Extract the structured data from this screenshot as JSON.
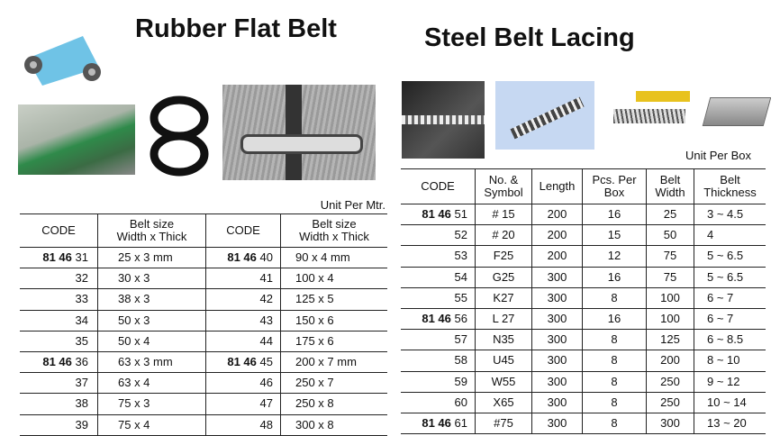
{
  "left": {
    "title": "Rubber Flat Belt",
    "unit": "Unit Per Mtr.",
    "headers": [
      "CODE",
      "Belt size",
      "Width x Thick",
      "CODE",
      "Belt size",
      "Width x Thick"
    ],
    "groups": [
      {
        "prefix_a": "81 46",
        "prefix_b": "81 46",
        "rows": [
          [
            "31",
            "25 x 3 mm",
            "40",
            "90 x 4 mm"
          ],
          [
            "32",
            "30 x 3",
            "41",
            "100 x 4"
          ],
          [
            "33",
            "38 x 3",
            "42",
            "125 x 5"
          ],
          [
            "34",
            "50 x 3",
            "43",
            "150 x 6"
          ],
          [
            "35",
            "50 x 4",
            "44",
            "175 x 6"
          ]
        ]
      },
      {
        "prefix_a": "81 46",
        "prefix_b": "81 46",
        "rows": [
          [
            "36",
            "63 x 3 mm",
            "45",
            "200 x 7 mm"
          ],
          [
            "37",
            "63 x 4",
            "46",
            "250 x 7"
          ],
          [
            "38",
            "75 x 3",
            "47",
            "250 x 8"
          ],
          [
            "39",
            "75 x 4",
            "48",
            "300 x 8"
          ]
        ]
      }
    ]
  },
  "right": {
    "title": "Steel Belt Lacing",
    "unit": "Unit Per Box",
    "headers": [
      "CODE",
      "No. &",
      "Symbol",
      "Length",
      "Pcs. Per",
      "Box",
      "Belt",
      "Width",
      "Belt",
      "Thickness"
    ],
    "groups": [
      {
        "prefix": "81 46",
        "rows": [
          [
            "51",
            "# 15",
            "200",
            "16",
            "25",
            "3 ~ 4.5"
          ],
          [
            "52",
            "# 20",
            "200",
            "15",
            "50",
            "4"
          ],
          [
            "53",
            "F25",
            "200",
            "12",
            "75",
            "5 ~ 6.5"
          ],
          [
            "54",
            "G25",
            "300",
            "16",
            "75",
            "5 ~ 6.5"
          ],
          [
            "55",
            "K27",
            "300",
            "8",
            "100",
            "6 ~ 7"
          ]
        ]
      },
      {
        "prefix": "81 46",
        "rows": [
          [
            "56",
            "L 27",
            "300",
            "16",
            "100",
            "6 ~ 7"
          ],
          [
            "57",
            "N35",
            "300",
            "8",
            "125",
            "6 ~ 8.5"
          ],
          [
            "58",
            "U45",
            "300",
            "8",
            "200",
            "8 ~ 10"
          ],
          [
            "59",
            "W55",
            "300",
            "8",
            "250",
            "9 ~ 12"
          ],
          [
            "60",
            "X65",
            "300",
            "8",
            "250",
            "10 ~ 14"
          ]
        ]
      },
      {
        "prefix": "81 46",
        "rows": [
          [
            "61",
            "#75",
            "300",
            "8",
            "300",
            "13 ~ 20"
          ]
        ]
      }
    ]
  }
}
